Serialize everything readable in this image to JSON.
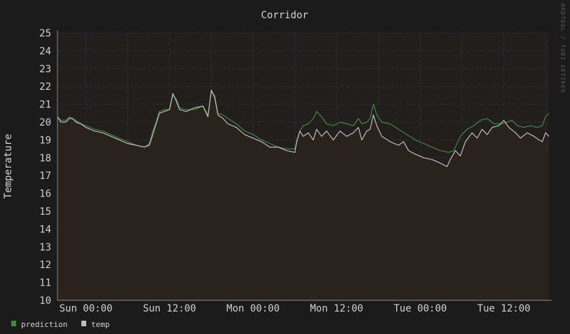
{
  "chart_data": {
    "type": "line",
    "title": "Corridor",
    "ylabel": "Temperature",
    "xlabel": "",
    "ylim": [
      10,
      25
    ],
    "yticks": [
      10,
      11,
      12,
      13,
      14,
      15,
      16,
      17,
      18,
      19,
      20,
      21,
      22,
      23,
      24,
      25
    ],
    "x_range": [
      -0.17,
      2.77
    ],
    "x_units": "days since Sun 00:00",
    "x_ticks": [
      {
        "label": "Sun 00:00",
        "x": 0.0
      },
      {
        "label": "Sun 12:00",
        "x": 0.5
      },
      {
        "label": "Mon 00:00",
        "x": 1.0
      },
      {
        "label": "Mon 12:00",
        "x": 1.5
      },
      {
        "label": "Tue 00:00",
        "x": 2.0
      },
      {
        "label": "Tue 12:00",
        "x": 2.5
      }
    ],
    "minor_grid_x": [
      -0.17,
      0.0,
      0.25,
      0.5,
      0.75,
      1.0,
      1.25,
      1.5,
      1.75,
      2.0,
      2.25,
      2.5,
      2.75
    ],
    "grid": true,
    "legend_placement": "bottom-left",
    "watermark": "RRDTOOL / TOBI OETIKER",
    "series": [
      {
        "name": "prediction",
        "color": "#3d8a3d",
        "points": [
          [
            -0.17,
            20.3
          ],
          [
            -0.15,
            20.1
          ],
          [
            -0.12,
            20.1
          ],
          [
            -0.1,
            20.3
          ],
          [
            -0.08,
            20.2
          ],
          [
            -0.06,
            20.1
          ],
          [
            -0.03,
            19.9
          ],
          [
            0.0,
            19.8
          ],
          [
            0.05,
            19.6
          ],
          [
            0.1,
            19.5
          ],
          [
            0.15,
            19.3
          ],
          [
            0.2,
            19.1
          ],
          [
            0.25,
            18.9
          ],
          [
            0.3,
            18.7
          ],
          [
            0.35,
            18.6
          ],
          [
            0.38,
            18.8
          ],
          [
            0.4,
            19.5
          ],
          [
            0.42,
            20.0
          ],
          [
            0.44,
            20.6
          ],
          [
            0.47,
            20.7
          ],
          [
            0.5,
            20.7
          ],
          [
            0.52,
            21.5
          ],
          [
            0.54,
            21.3
          ],
          [
            0.56,
            20.8
          ],
          [
            0.6,
            20.7
          ],
          [
            0.65,
            20.7
          ],
          [
            0.7,
            20.9
          ],
          [
            0.73,
            20.4
          ],
          [
            0.75,
            21.7
          ],
          [
            0.77,
            21.5
          ],
          [
            0.79,
            20.5
          ],
          [
            0.82,
            20.4
          ],
          [
            0.85,
            20.2
          ],
          [
            0.9,
            19.9
          ],
          [
            0.95,
            19.5
          ],
          [
            1.0,
            19.3
          ],
          [
            1.05,
            19.0
          ],
          [
            1.1,
            18.8
          ],
          [
            1.15,
            18.6
          ],
          [
            1.2,
            18.5
          ],
          [
            1.25,
            18.5
          ],
          [
            1.28,
            19.5
          ],
          [
            1.3,
            19.8
          ],
          [
            1.33,
            19.9
          ],
          [
            1.36,
            20.2
          ],
          [
            1.38,
            20.6
          ],
          [
            1.41,
            20.3
          ],
          [
            1.44,
            19.9
          ],
          [
            1.48,
            19.8
          ],
          [
            1.52,
            20.0
          ],
          [
            1.56,
            19.9
          ],
          [
            1.6,
            19.8
          ],
          [
            1.63,
            20.2
          ],
          [
            1.65,
            19.9
          ],
          [
            1.68,
            20.0
          ],
          [
            1.7,
            20.2
          ],
          [
            1.72,
            21.0
          ],
          [
            1.74,
            20.4
          ],
          [
            1.77,
            20.0
          ],
          [
            1.82,
            19.9
          ],
          [
            1.87,
            19.6
          ],
          [
            1.92,
            19.3
          ],
          [
            1.97,
            19.0
          ],
          [
            2.02,
            18.8
          ],
          [
            2.07,
            18.6
          ],
          [
            2.12,
            18.4
          ],
          [
            2.17,
            18.3
          ],
          [
            2.2,
            18.4
          ],
          [
            2.24,
            19.2
          ],
          [
            2.28,
            19.6
          ],
          [
            2.32,
            19.8
          ],
          [
            2.36,
            20.1
          ],
          [
            2.4,
            20.2
          ],
          [
            2.44,
            19.9
          ],
          [
            2.48,
            19.9
          ],
          [
            2.52,
            20.0
          ],
          [
            2.55,
            20.1
          ],
          [
            2.58,
            19.8
          ],
          [
            2.62,
            19.7
          ],
          [
            2.66,
            19.8
          ],
          [
            2.7,
            19.7
          ],
          [
            2.73,
            19.8
          ],
          [
            2.75,
            20.3
          ],
          [
            2.77,
            20.5
          ]
        ]
      },
      {
        "name": "temp",
        "color": "#bdbdbd",
        "points": [
          [
            -0.17,
            20.3
          ],
          [
            -0.15,
            20.0
          ],
          [
            -0.12,
            20.0
          ],
          [
            -0.1,
            20.2
          ],
          [
            -0.08,
            20.2
          ],
          [
            -0.06,
            20.0
          ],
          [
            -0.03,
            19.9
          ],
          [
            0.0,
            19.7
          ],
          [
            0.05,
            19.5
          ],
          [
            0.1,
            19.4
          ],
          [
            0.15,
            19.2
          ],
          [
            0.2,
            19.0
          ],
          [
            0.25,
            18.8
          ],
          [
            0.3,
            18.7
          ],
          [
            0.35,
            18.6
          ],
          [
            0.38,
            18.7
          ],
          [
            0.4,
            19.3
          ],
          [
            0.42,
            19.9
          ],
          [
            0.44,
            20.5
          ],
          [
            0.47,
            20.6
          ],
          [
            0.5,
            20.7
          ],
          [
            0.52,
            21.6
          ],
          [
            0.54,
            21.2
          ],
          [
            0.56,
            20.7
          ],
          [
            0.6,
            20.6
          ],
          [
            0.65,
            20.8
          ],
          [
            0.7,
            20.9
          ],
          [
            0.73,
            20.3
          ],
          [
            0.75,
            21.8
          ],
          [
            0.77,
            21.4
          ],
          [
            0.79,
            20.4
          ],
          [
            0.82,
            20.2
          ],
          [
            0.85,
            19.9
          ],
          [
            0.9,
            19.7
          ],
          [
            0.95,
            19.3
          ],
          [
            1.0,
            19.1
          ],
          [
            1.05,
            18.9
          ],
          [
            1.1,
            18.6
          ],
          [
            1.15,
            18.6
          ],
          [
            1.2,
            18.4
          ],
          [
            1.25,
            18.3
          ],
          [
            1.26,
            18.9
          ],
          [
            1.28,
            19.5
          ],
          [
            1.3,
            19.2
          ],
          [
            1.33,
            19.4
          ],
          [
            1.36,
            19.0
          ],
          [
            1.38,
            19.6
          ],
          [
            1.41,
            19.2
          ],
          [
            1.44,
            19.5
          ],
          [
            1.48,
            19.0
          ],
          [
            1.52,
            19.5
          ],
          [
            1.56,
            19.2
          ],
          [
            1.6,
            19.4
          ],
          [
            1.63,
            19.7
          ],
          [
            1.65,
            19.0
          ],
          [
            1.68,
            19.5
          ],
          [
            1.7,
            19.6
          ],
          [
            1.72,
            20.4
          ],
          [
            1.74,
            19.8
          ],
          [
            1.77,
            19.2
          ],
          [
            1.82,
            18.9
          ],
          [
            1.87,
            18.7
          ],
          [
            1.9,
            18.9
          ],
          [
            1.93,
            18.4
          ],
          [
            1.97,
            18.2
          ],
          [
            2.02,
            18.0
          ],
          [
            2.07,
            17.9
          ],
          [
            2.12,
            17.7
          ],
          [
            2.16,
            17.5
          ],
          [
            2.18,
            17.9
          ],
          [
            2.21,
            18.4
          ],
          [
            2.24,
            18.1
          ],
          [
            2.27,
            18.9
          ],
          [
            2.31,
            19.4
          ],
          [
            2.34,
            19.1
          ],
          [
            2.37,
            19.6
          ],
          [
            2.4,
            19.3
          ],
          [
            2.43,
            19.7
          ],
          [
            2.47,
            19.8
          ],
          [
            2.5,
            20.1
          ],
          [
            2.53,
            19.7
          ],
          [
            2.57,
            19.4
          ],
          [
            2.6,
            19.1
          ],
          [
            2.64,
            19.4
          ],
          [
            2.68,
            19.2
          ],
          [
            2.71,
            19.0
          ],
          [
            2.73,
            18.9
          ],
          [
            2.75,
            19.4
          ],
          [
            2.77,
            19.2
          ]
        ]
      }
    ]
  }
}
